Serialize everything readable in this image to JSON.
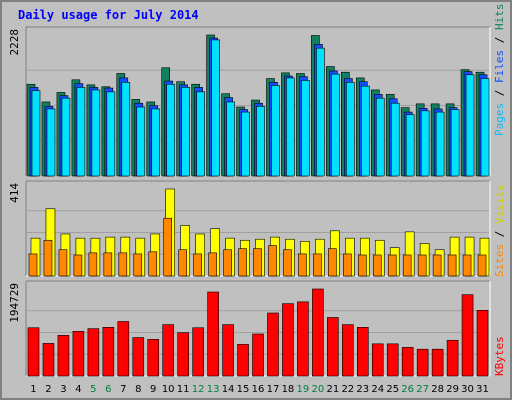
{
  "title": "Daily usage for July 2014",
  "colors": {
    "pages": "#00a0ff",
    "files": "#1050ff",
    "hits": "#108060",
    "visits": "#ffff00",
    "sites": "#ff8800",
    "kbytes": "#ff0000",
    "weekday_label": "#000000",
    "weekend_label": "#008040"
  },
  "chart_data": [
    {
      "type": "bar",
      "title": "Daily usage for July 2014",
      "categories": [
        "1",
        "2",
        "3",
        "4",
        "5",
        "6",
        "7",
        "8",
        "9",
        "10",
        "11",
        "12",
        "13",
        "14",
        "15",
        "16",
        "17",
        "18",
        "19",
        "20",
        "21",
        "22",
        "23",
        "24",
        "25",
        "26",
        "27",
        "28",
        "29",
        "30",
        "31"
      ],
      "weekend_days": [
        "5",
        "6",
        "12",
        "13",
        "19",
        "20",
        "26",
        "27"
      ],
      "ymax_label": "2228",
      "ylim": [
        0,
        2228
      ],
      "right_label": [
        "Pages",
        "Files",
        "Hits"
      ],
      "grid": true,
      "series": [
        {
          "name": "Hits",
          "values": [
            1450,
            1170,
            1320,
            1520,
            1440,
            1410,
            1620,
            1210,
            1170,
            1710,
            1490,
            1450,
            2228,
            1300,
            1090,
            1200,
            1540,
            1630,
            1620,
            2220,
            1730,
            1640,
            1550,
            1360,
            1290,
            1080,
            1140,
            1140,
            1140,
            1680,
            1640
          ]
        },
        {
          "name": "Files",
          "values": [
            1400,
            1100,
            1270,
            1460,
            1400,
            1390,
            1550,
            1150,
            1110,
            1500,
            1440,
            1400,
            2180,
            1240,
            1050,
            1150,
            1480,
            1580,
            1570,
            2080,
            1660,
            1540,
            1490,
            1290,
            1220,
            1010,
            1070,
            1060,
            1080,
            1650,
            1600
          ]
        },
        {
          "name": "Pages",
          "values": [
            1350,
            1060,
            1230,
            1400,
            1360,
            1330,
            1480,
            1090,
            1060,
            1450,
            1400,
            1330,
            2150,
            1170,
            1010,
            1100,
            1430,
            1550,
            1510,
            2020,
            1610,
            1480,
            1420,
            1230,
            1150,
            970,
            1030,
            1010,
            1050,
            1600,
            1540
          ]
        }
      ]
    },
    {
      "type": "bar",
      "categories": [
        "1",
        "2",
        "3",
        "4",
        "5",
        "6",
        "7",
        "8",
        "9",
        "10",
        "11",
        "12",
        "13",
        "14",
        "15",
        "16",
        "17",
        "18",
        "19",
        "20",
        "21",
        "22",
        "23",
        "24",
        "25",
        "26",
        "27",
        "28",
        "29",
        "30",
        "31"
      ],
      "ymax_label": "414",
      "ylim": [
        0,
        414
      ],
      "right_label": [
        "Sites",
        "Visits"
      ],
      "grid": true,
      "series": [
        {
          "name": "Visits",
          "values": [
            180,
            320,
            200,
            180,
            180,
            185,
            185,
            180,
            200,
            414,
            240,
            200,
            225,
            180,
            170,
            175,
            185,
            175,
            165,
            175,
            215,
            180,
            180,
            170,
            135,
            210,
            155,
            125,
            185,
            185,
            180
          ]
        },
        {
          "name": "Sites",
          "values": [
            105,
            170,
            125,
            100,
            110,
            110,
            110,
            105,
            115,
            275,
            125,
            105,
            110,
            125,
            130,
            130,
            145,
            125,
            105,
            105,
            130,
            105,
            100,
            100,
            100,
            100,
            100,
            100,
            100,
            100,
            100
          ]
        }
      ]
    },
    {
      "type": "bar",
      "categories": [
        "1",
        "2",
        "3",
        "4",
        "5",
        "6",
        "7",
        "8",
        "9",
        "10",
        "11",
        "12",
        "13",
        "14",
        "15",
        "16",
        "17",
        "18",
        "19",
        "20",
        "21",
        "22",
        "23",
        "24",
        "25",
        "26",
        "27",
        "28",
        "29",
        "30",
        "31"
      ],
      "ymax_label": "194729",
      "ylim": [
        0,
        194729
      ],
      "right_label": [
        "KBytes"
      ],
      "grid": true,
      "series": [
        {
          "name": "KBytes",
          "values": [
            108000,
            73000,
            91000,
            100000,
            106000,
            109000,
            122000,
            86000,
            82000,
            115000,
            97000,
            108000,
            188000,
            115000,
            71000,
            94000,
            141000,
            162000,
            166000,
            194729,
            131000,
            115000,
            109000,
            72000,
            72000,
            64000,
            60000,
            60000,
            80000,
            182000,
            147000
          ]
        }
      ]
    }
  ]
}
